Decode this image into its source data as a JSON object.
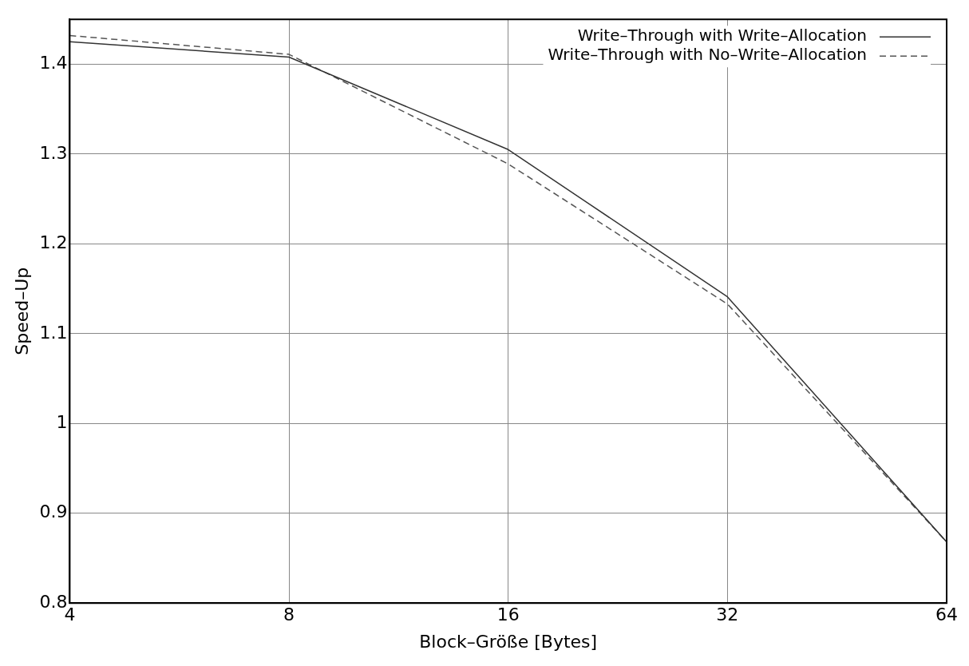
{
  "chart_data": {
    "type": "line",
    "xlabel": "Block–Größe [Bytes]",
    "ylabel": "Speed–Up",
    "x": [
      4,
      8,
      16,
      32,
      64
    ],
    "log": "x",
    "xlim": [
      4,
      64
    ],
    "xticks": [
      4,
      8,
      16,
      32,
      64
    ],
    "ylim": [
      0.8,
      1.45
    ],
    "yticks": [
      0.8,
      0.9,
      {
        "value": 1,
        "label": "1"
      },
      1.1,
      1.2,
      1.3,
      1.4
    ],
    "grid": true,
    "legend": "top right",
    "marker": "none",
    "series": [
      {
        "name": "Write–Through with Write–Allocation",
        "color": "#333333",
        "line_style": "solid",
        "values": [
          1.425,
          1.408,
          1.305,
          1.141,
          0.868
        ]
      },
      {
        "name": "Write–Through with No–Write–Allocation",
        "color": "#555555",
        "line_style": "dashed",
        "values": [
          1.432,
          1.411,
          1.289,
          1.133,
          0.868
        ]
      }
    ]
  }
}
